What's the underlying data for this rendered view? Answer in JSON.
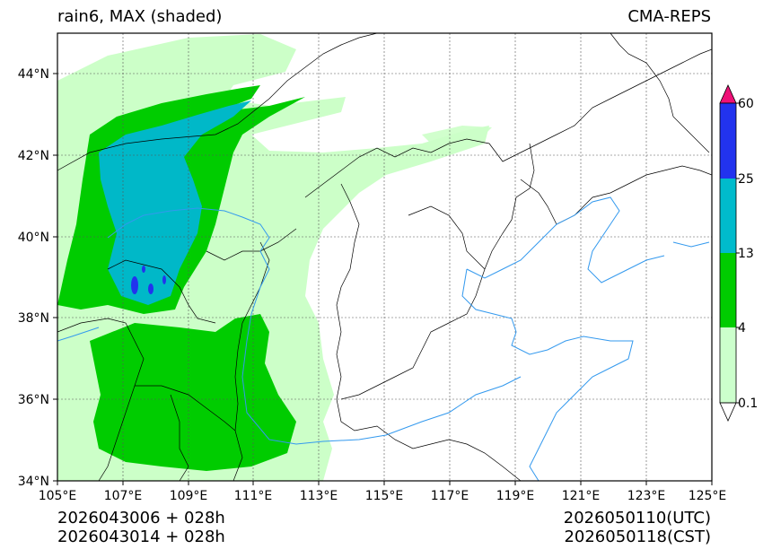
{
  "title": {
    "left": "rain6, MAX (shaded)",
    "right": "CMA-REPS"
  },
  "footer": {
    "left_line1": "2026043006  +  028h",
    "left_line2": "2026043014  +  028h",
    "right_line1": "2026050110(UTC)",
    "right_line2": "2026050118(CST)"
  },
  "axes": {
    "lon_ticks": [
      "105°E",
      "107°E",
      "109°E",
      "111°E",
      "113°E",
      "115°E",
      "117°E",
      "119°E",
      "121°E",
      "123°E",
      "125°E"
    ],
    "lat_ticks": [
      "44°N",
      "42°N",
      "40°N",
      "38°N",
      "36°N",
      "34°N"
    ],
    "lon_range": [
      105,
      125
    ],
    "lat_range": [
      34,
      45
    ],
    "lat_values": [
      44,
      42,
      40,
      38,
      36,
      34
    ],
    "lon_values": [
      105,
      107,
      109,
      111,
      113,
      115,
      117,
      119,
      121,
      123,
      125
    ]
  },
  "colorbar": {
    "labels": [
      "0.1",
      "4",
      "13",
      "25",
      "60"
    ],
    "levels": [
      0.1,
      4,
      13,
      25,
      60
    ],
    "colors": {
      "under": "#ffffff",
      "b0_4": "#ccffcc",
      "b4_13": "#00cc00",
      "b13_25": "#00bbcc",
      "b25_60": "#2233ee",
      "over": "#ee1177"
    }
  },
  "colors": {
    "light_green": "#ccffc8",
    "green": "#00cc00",
    "cyan": "#00b8c8",
    "blue": "#2233ee",
    "river": "#3399ee",
    "border": "#000000"
  }
}
